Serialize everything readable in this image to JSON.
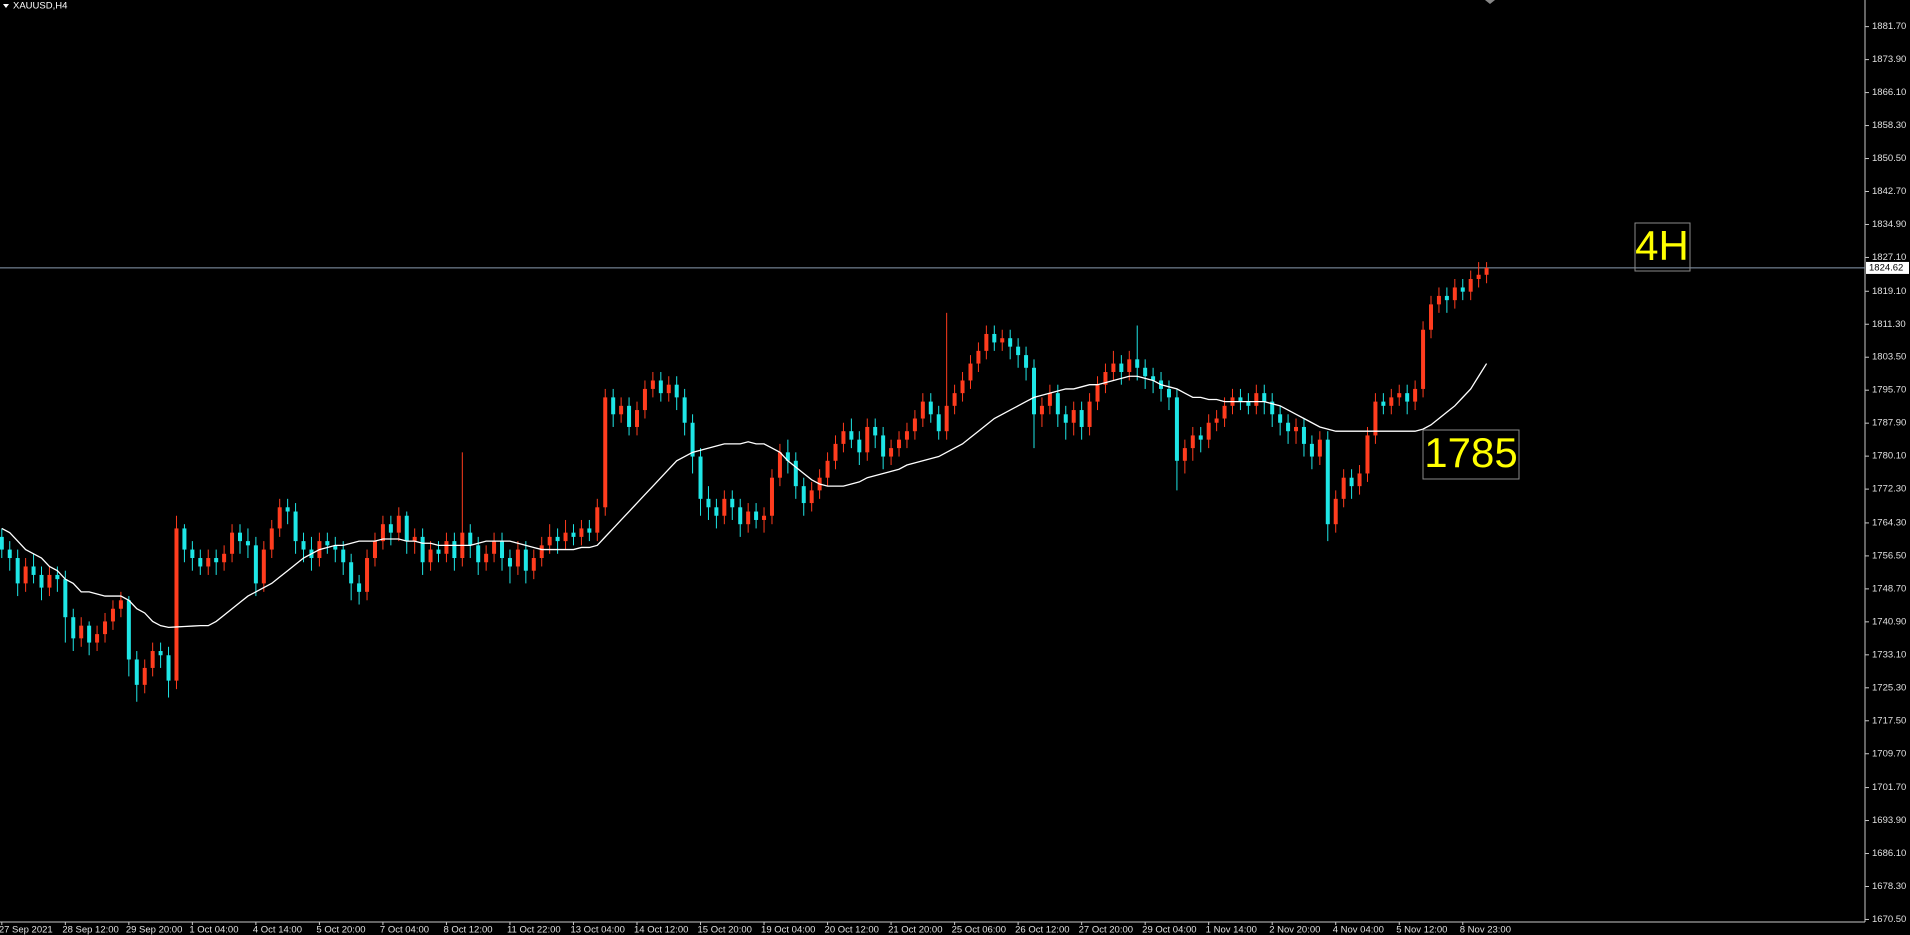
{
  "chart_data": {
    "type": "candlestick",
    "title": "XAUUSD,H4",
    "x": [
      "27 Sep 2021",
      null,
      null,
      null,
      null,
      null,
      null,
      null,
      "28 Sep 12:00",
      null,
      null,
      null,
      null,
      null,
      null,
      null,
      "29 Sep 20:00",
      null,
      null,
      null,
      null,
      null,
      null,
      null,
      "1 Oct 04:00",
      null,
      null,
      null,
      null,
      null,
      null,
      null,
      "4 Oct 14:00",
      null,
      null,
      null,
      null,
      null,
      null,
      null,
      "5 Oct 20:00",
      null,
      null,
      null,
      null,
      null,
      null,
      null,
      "7 Oct 04:00",
      null,
      null,
      null,
      null,
      null,
      null,
      null,
      "8 Oct 12:00",
      null,
      null,
      null,
      null,
      null,
      null,
      null,
      "11 Oct 22:00",
      null,
      null,
      null,
      null,
      null,
      null,
      null,
      "13 Oct 04:00",
      null,
      null,
      null,
      null,
      null,
      null,
      null,
      "14 Oct 12:00",
      null,
      null,
      null,
      null,
      null,
      null,
      null,
      "15 Oct 20:00",
      null,
      null,
      null,
      null,
      null,
      null,
      null,
      "19 Oct 04:00",
      null,
      null,
      null,
      null,
      null,
      null,
      null,
      "20 Oct 12:00",
      null,
      null,
      null,
      null,
      null,
      null,
      null,
      "21 Oct 20:00",
      null,
      null,
      null,
      null,
      null,
      null,
      null,
      "25 Oct 06:00",
      null,
      null,
      null,
      null,
      null,
      null,
      null,
      "26 Oct 12:00",
      null,
      null,
      null,
      null,
      null,
      null,
      null,
      "27 Oct 20:00",
      null,
      null,
      null,
      null,
      null,
      null,
      null,
      "29 Oct 04:00",
      null,
      null,
      null,
      null,
      null,
      null,
      null,
      "1 Nov 14:00",
      null,
      null,
      null,
      null,
      null,
      null,
      null,
      "2 Nov 20:00",
      null,
      null,
      null,
      null,
      null,
      null,
      null,
      "4 Nov 04:00",
      null,
      null,
      null,
      null,
      null,
      null,
      null,
      "5 Nov 12:00",
      null,
      null,
      null,
      null,
      null,
      null,
      null,
      "8 Nov 23:00",
      null,
      null,
      null
    ],
    "open": [
      1761,
      1758,
      1756,
      1750,
      1754,
      1752,
      1749,
      1752,
      1751,
      1742,
      1737,
      1740,
      1736,
      1738,
      1741,
      1744,
      1746,
      1732,
      1726,
      1730,
      1734,
      1733,
      1727,
      1763,
      1758,
      1756,
      1754,
      1756,
      1755,
      1757,
      1762,
      1760,
      1759,
      1750,
      1758,
      1763,
      1768,
      1767,
      1760,
      1758,
      1756,
      1760,
      1759,
      1758,
      1755,
      1750,
      1748,
      1756,
      1760,
      1764,
      1762,
      1766,
      1760,
      1761,
      1755,
      1758,
      1757,
      1760,
      1756,
      1762,
      1759,
      1755,
      1757,
      1760,
      1756,
      1754,
      1758,
      1753,
      1756,
      1759,
      1761,
      1760,
      1762,
      1761,
      1763,
      1762,
      1768,
      1794,
      1790,
      1792,
      1787,
      1791,
      1796,
      1798,
      1795,
      1797,
      1794,
      1788,
      1780,
      1770,
      1768,
      1766,
      1770,
      1768,
      1764,
      1767,
      1765,
      1766,
      1775,
      1781,
      1779,
      1773,
      1769,
      1772,
      1775,
      1779,
      1783,
      1786,
      1784,
      1781,
      1787,
      1785,
      1780,
      1782,
      1784,
      1786,
      1789,
      1793,
      1790,
      1786,
      1792,
      1795,
      1798,
      1802,
      1805,
      1809,
      1807,
      1808,
      1806,
      1804,
      1801,
      1790,
      1792,
      1795,
      1790,
      1788,
      1791,
      1787,
      1793,
      1797,
      1800,
      1802,
      1800,
      1803,
      1801,
      1799,
      1798,
      1796,
      1794,
      1779,
      1782,
      1785,
      1784,
      1788,
      1789,
      1792,
      1794,
      1793,
      1792,
      1795,
      1793,
      1790,
      1788,
      1786,
      1787,
      1783,
      1780,
      1784,
      1764,
      1770,
      1775,
      1773,
      1776,
      1785,
      1793,
      1792,
      1794,
      1795,
      1793,
      1796,
      1810,
      1816,
      1818,
      1817,
      1820,
      1819,
      1822,
      1823
    ],
    "high": [
      1763,
      1760,
      1758,
      1756,
      1757,
      1754,
      1754,
      1754,
      1753,
      1744,
      1742,
      1741,
      1740,
      1743,
      1746,
      1748,
      1747,
      1734,
      1732,
      1736,
      1736,
      1735,
      1766,
      1764,
      1760,
      1758,
      1758,
      1758,
      1759,
      1764,
      1764,
      1763,
      1761,
      1760,
      1765,
      1770,
      1770,
      1769,
      1762,
      1761,
      1762,
      1762,
      1761,
      1760,
      1757,
      1752,
      1758,
      1762,
      1766,
      1766,
      1768,
      1767,
      1763,
      1763,
      1760,
      1760,
      1762,
      1762,
      1781,
      1764,
      1761,
      1759,
      1762,
      1762,
      1758,
      1760,
      1760,
      1758,
      1761,
      1764,
      1763,
      1765,
      1764,
      1765,
      1765,
      1770,
      1796,
      1796,
      1794,
      1794,
      1793,
      1798,
      1800,
      1800,
      1799,
      1799,
      1796,
      1790,
      1782,
      1773,
      1770,
      1772,
      1772,
      1770,
      1769,
      1769,
      1768,
      1777,
      1783,
      1784,
      1781,
      1775,
      1774,
      1777,
      1781,
      1785,
      1788,
      1789,
      1786,
      1789,
      1789,
      1787,
      1784,
      1786,
      1788,
      1791,
      1795,
      1795,
      1792,
      1814,
      1797,
      1800,
      1804,
      1807,
      1811,
      1811,
      1810,
      1810,
      1808,
      1806,
      1803,
      1794,
      1797,
      1797,
      1792,
      1793,
      1793,
      1795,
      1799,
      1802,
      1805,
      1804,
      1805,
      1811,
      1803,
      1801,
      1800,
      1798,
      1796,
      1784,
      1787,
      1787,
      1790,
      1791,
      1794,
      1796,
      1796,
      1795,
      1797,
      1797,
      1795,
      1792,
      1790,
      1789,
      1789,
      1785,
      1786,
      1786,
      1772,
      1777,
      1777,
      1778,
      1787,
      1795,
      1795,
      1796,
      1797,
      1797,
      1798,
      1812,
      1818,
      1820,
      1820,
      1822,
      1822,
      1824,
      1826,
      1826
    ],
    "low": [
      1756,
      1753,
      1747,
      1748,
      1750,
      1746,
      1747,
      1748,
      1736,
      1734,
      1735,
      1733,
      1734,
      1736,
      1739,
      1742,
      1728,
      1722,
      1724,
      1728,
      1730,
      1723,
      1725,
      1755,
      1753,
      1752,
      1752,
      1752,
      1753,
      1755,
      1757,
      1756,
      1747,
      1748,
      1756,
      1761,
      1764,
      1757,
      1755,
      1753,
      1754,
      1757,
      1755,
      1752,
      1746,
      1745,
      1746,
      1754,
      1758,
      1759,
      1760,
      1757,
      1757,
      1752,
      1753,
      1755,
      1755,
      1753,
      1754,
      1756,
      1752,
      1753,
      1755,
      1753,
      1750,
      1752,
      1750,
      1751,
      1754,
      1757,
      1757,
      1758,
      1759,
      1759,
      1760,
      1760,
      1766,
      1787,
      1788,
      1785,
      1785,
      1789,
      1794,
      1793,
      1793,
      1791,
      1785,
      1776,
      1766,
      1765,
      1763,
      1764,
      1765,
      1761,
      1762,
      1763,
      1762,
      1764,
      1773,
      1776,
      1770,
      1766,
      1767,
      1770,
      1773,
      1777,
      1781,
      1782,
      1778,
      1779,
      1782,
      1777,
      1778,
      1780,
      1782,
      1784,
      1787,
      1788,
      1784,
      1784,
      1790,
      1793,
      1796,
      1800,
      1803,
      1805,
      1805,
      1803,
      1801,
      1798,
      1782,
      1787,
      1790,
      1787,
      1784,
      1785,
      1784,
      1785,
      1791,
      1795,
      1798,
      1797,
      1798,
      1798,
      1796,
      1795,
      1793,
      1791,
      1772,
      1776,
      1779,
      1781,
      1782,
      1786,
      1787,
      1790,
      1791,
      1790,
      1790,
      1790,
      1787,
      1785,
      1783,
      1783,
      1780,
      1777,
      1778,
      1760,
      1762,
      1768,
      1770,
      1771,
      1774,
      1783,
      1790,
      1790,
      1792,
      1790,
      1791,
      1794,
      1808,
      1814,
      1814,
      1815,
      1817,
      1817,
      1820,
      1821
    ],
    "close": [
      1758,
      1756,
      1750,
      1754,
      1752,
      1749,
      1752,
      1751,
      1742,
      1737,
      1740,
      1736,
      1738,
      1741,
      1744,
      1746,
      1732,
      1726,
      1730,
      1734,
      1733,
      1727,
      1763,
      1758,
      1756,
      1754,
      1756,
      1755,
      1757,
      1762,
      1760,
      1759,
      1750,
      1758,
      1763,
      1768,
      1767,
      1760,
      1758,
      1756,
      1760,
      1759,
      1758,
      1755,
      1750,
      1748,
      1756,
      1760,
      1764,
      1762,
      1766,
      1760,
      1761,
      1755,
      1758,
      1757,
      1760,
      1756,
      1762,
      1759,
      1755,
      1757,
      1760,
      1756,
      1754,
      1758,
      1753,
      1756,
      1759,
      1761,
      1760,
      1762,
      1761,
      1763,
      1762,
      1768,
      1794,
      1790,
      1792,
      1787,
      1791,
      1796,
      1798,
      1795,
      1797,
      1794,
      1788,
      1780,
      1770,
      1768,
      1766,
      1770,
      1768,
      1764,
      1767,
      1765,
      1766,
      1775,
      1781,
      1779,
      1773,
      1769,
      1772,
      1775,
      1779,
      1783,
      1786,
      1784,
      1781,
      1787,
      1785,
      1780,
      1782,
      1784,
      1786,
      1789,
      1793,
      1790,
      1786,
      1792,
      1795,
      1798,
      1802,
      1805,
      1809,
      1807,
      1808,
      1806,
      1804,
      1801,
      1790,
      1792,
      1795,
      1790,
      1788,
      1791,
      1787,
      1793,
      1797,
      1800,
      1802,
      1800,
      1803,
      1801,
      1799,
      1798,
      1796,
      1794,
      1779,
      1782,
      1785,
      1784,
      1788,
      1789,
      1792,
      1794,
      1793,
      1792,
      1795,
      1793,
      1790,
      1788,
      1786,
      1787,
      1783,
      1780,
      1784,
      1764,
      1770,
      1775,
      1773,
      1776,
      1785,
      1793,
      1792,
      1794,
      1795,
      1793,
      1796,
      1810,
      1816,
      1818,
      1817,
      1820,
      1819,
      1822,
      1823,
      1824.62
    ],
    "up_color": "#ff3c1e",
    "down_color": "#1ee6e6",
    "ma": {
      "color": "#ffffff",
      "values": [
        1763,
        1762,
        1760,
        1758,
        1757,
        1756,
        1754,
        1753,
        1751,
        1750,
        1748,
        1748,
        1747.5,
        1747,
        1747,
        1747,
        1746,
        1744,
        1743,
        1741,
        1740,
        1739.6,
        1739.7,
        1739.8,
        1739.9,
        1740,
        1740,
        1741,
        1742.5,
        1744,
        1745.5,
        1747,
        1748,
        1749,
        1750,
        1751.5,
        1753,
        1754.5,
        1756,
        1757,
        1758,
        1758.5,
        1759,
        1759,
        1759.5,
        1760,
        1760,
        1760,
        1760.5,
        1760.5,
        1760.5,
        1760,
        1760,
        1759.5,
        1759.5,
        1759,
        1759,
        1759,
        1759,
        1759,
        1759.5,
        1760,
        1760,
        1760,
        1760,
        1759.5,
        1759,
        1758.5,
        1758,
        1758,
        1758,
        1758,
        1758,
        1758.5,
        1758.5,
        1759,
        1761,
        1763,
        1765,
        1767,
        1769,
        1771,
        1773,
        1775,
        1777,
        1779,
        1780,
        1781,
        1781.5,
        1782,
        1782.5,
        1783,
        1783,
        1783,
        1783.5,
        1783,
        1783,
        1782,
        1781,
        1779,
        1777.5,
        1776,
        1774.5,
        1773.5,
        1773,
        1773,
        1773,
        1773.5,
        1774,
        1775,
        1775.5,
        1776,
        1776.5,
        1777,
        1778,
        1778.5,
        1779,
        1779.5,
        1780,
        1781,
        1782,
        1783,
        1784.5,
        1786,
        1787.5,
        1789,
        1790,
        1791,
        1792,
        1793,
        1794,
        1794.5,
        1795,
        1795.5,
        1796,
        1796,
        1796.5,
        1797,
        1797,
        1797.5,
        1798,
        1798.5,
        1799,
        1799,
        1798.5,
        1798,
        1797,
        1796.5,
        1796,
        1795,
        1794,
        1794,
        1793.5,
        1793.5,
        1793,
        1793,
        1793,
        1793,
        1793,
        1793,
        1792.5,
        1792,
        1791,
        1790,
        1789,
        1788,
        1787,
        1786.5,
        1786,
        1786,
        1786,
        1786,
        1786,
        1786,
        1786,
        1786,
        1786,
        1786,
        1786,
        1786.5,
        1787.5,
        1789,
        1790.5,
        1792,
        1794,
        1796,
        1799,
        1802
      ]
    },
    "ylim": [
      1669.9,
      1888.0
    ],
    "yticks": [
      {
        "value": 1881.7,
        "label": "1881.70"
      },
      {
        "value": 1873.9,
        "label": "1873.90"
      },
      {
        "value": 1866.1,
        "label": "1866.10"
      },
      {
        "value": 1858.3,
        "label": "1858.30"
      },
      {
        "value": 1850.5,
        "label": "1850.50"
      },
      {
        "value": 1842.7,
        "label": "1842.70"
      },
      {
        "value": 1834.9,
        "label": "1834.90"
      },
      {
        "value": 1827.1,
        "label": "1827.10"
      },
      {
        "value": 1819.1,
        "label": "1819.10"
      },
      {
        "value": 1811.3,
        "label": "1811.30"
      },
      {
        "value": 1803.5,
        "label": "1803.50"
      },
      {
        "value": 1795.7,
        "label": "1795.70"
      },
      {
        "value": 1787.9,
        "label": "1787.90"
      },
      {
        "value": 1780.1,
        "label": "1780.10"
      },
      {
        "value": 1772.3,
        "label": "1772.30"
      },
      {
        "value": 1764.3,
        "label": "1764.30"
      },
      {
        "value": 1756.5,
        "label": "1756.50"
      },
      {
        "value": 1748.7,
        "label": "1748.70"
      },
      {
        "value": 1740.9,
        "label": "1740.90"
      },
      {
        "value": 1733.1,
        "label": "1733.10"
      },
      {
        "value": 1725.3,
        "label": "1725.30"
      },
      {
        "value": 1717.5,
        "label": "1717.50"
      },
      {
        "value": 1709.7,
        "label": "1709.70"
      },
      {
        "value": 1701.7,
        "label": "1701.70"
      },
      {
        "value": 1693.9,
        "label": "1693.90"
      },
      {
        "value": 1686.1,
        "label": "1686.10"
      },
      {
        "value": 1678.3,
        "label": "1678.30"
      },
      {
        "value": 1670.5,
        "label": "1670.50"
      }
    ],
    "current_price": {
      "value": 1824.62,
      "label": "1824.62",
      "color": "#8a9bb0"
    },
    "annotations": [
      {
        "text": "4H"
      },
      {
        "text": "1785"
      }
    ]
  }
}
